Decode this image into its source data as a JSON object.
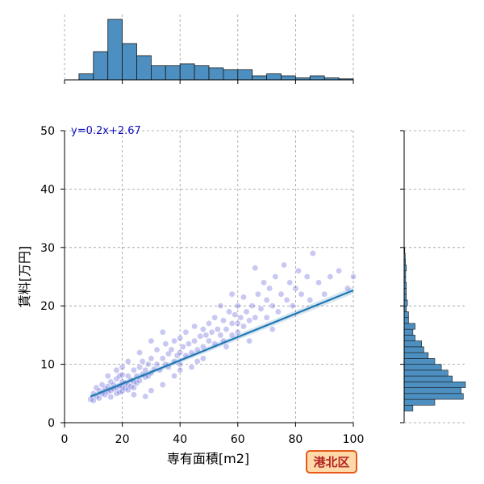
{
  "chart_data": {
    "type": "scatter",
    "xlabel": "専有面積[m2]",
    "ylabel": "賃料[万円]",
    "xlim": [
      0,
      100
    ],
    "ylim": [
      0,
      50
    ],
    "x_ticks": [
      "0",
      "20",
      "40",
      "60",
      "80",
      "100"
    ],
    "y_ticks": [
      "0",
      "10",
      "20",
      "30",
      "40",
      "50"
    ],
    "grid": true,
    "equation_label": "y=0.2x+2.67",
    "regression": {
      "slope": 0.2,
      "intercept": 2.67,
      "x_range": [
        9,
        100
      ]
    },
    "area_label": "港北区",
    "colors": {
      "points": "#3a3ad0",
      "regression_line": "#1f77b4",
      "histogram": "#4c8fc0",
      "badge_fill": "#ffd9a8",
      "badge_border": "#e55a1a",
      "equation": "#1010c0"
    },
    "x_histogram": {
      "bin_edges": [
        5,
        10,
        15,
        20,
        25,
        30,
        35,
        40,
        45,
        50,
        55,
        60,
        65,
        70,
        75,
        80,
        85,
        90,
        95,
        100
      ],
      "counts": [
        3,
        14,
        30,
        18,
        12,
        7,
        7,
        8,
        7,
        6,
        5,
        5,
        2,
        3,
        2,
        1,
        2,
        1,
        0.5,
        1
      ]
    },
    "y_histogram": {
      "bin_edges": [
        2,
        3,
        4,
        5,
        6,
        7,
        8,
        9,
        10,
        11,
        12,
        13,
        14,
        15,
        16,
        17,
        18,
        19,
        20,
        21,
        22,
        23,
        24,
        25,
        26,
        27,
        28,
        29,
        30
      ],
      "counts": [
        4,
        14,
        27,
        26,
        28,
        22,
        20,
        17,
        14,
        11,
        9,
        8,
        5,
        4,
        5,
        2,
        2,
        1,
        1.5,
        1,
        1,
        1,
        0.7,
        0.7,
        1,
        0.6,
        0.5,
        0.3
      ]
    },
    "points": [
      [
        9,
        4
      ],
      [
        10,
        5
      ],
      [
        10,
        3.8
      ],
      [
        11,
        6
      ],
      [
        11,
        4.5
      ],
      [
        12,
        5.5
      ],
      [
        12,
        4.2
      ],
      [
        13,
        6.5
      ],
      [
        13,
        5
      ],
      [
        14,
        5.8
      ],
      [
        14,
        4.8
      ],
      [
        15,
        6.2
      ],
      [
        15,
        5.3
      ],
      [
        16,
        7
      ],
      [
        16,
        5.5
      ],
      [
        16,
        4.4
      ],
      [
        17,
        6.5
      ],
      [
        17,
        5.8
      ],
      [
        18,
        7.5
      ],
      [
        18,
        6
      ],
      [
        18,
        5
      ],
      [
        19,
        8
      ],
      [
        19,
        6.3
      ],
      [
        19,
        5.2
      ],
      [
        20,
        7
      ],
      [
        20,
        6.1
      ],
      [
        20,
        5.4
      ],
      [
        20,
        9.5
      ],
      [
        20,
        8.2
      ],
      [
        21,
        6.8
      ],
      [
        21,
        5.9
      ],
      [
        22,
        8
      ],
      [
        22,
        6.5
      ],
      [
        22,
        5.6
      ],
      [
        23,
        7.3
      ],
      [
        23,
        6.2
      ],
      [
        24,
        9
      ],
      [
        24,
        7
      ],
      [
        24,
        6
      ],
      [
        25,
        8
      ],
      [
        25,
        6.8
      ],
      [
        26,
        9.5
      ],
      [
        26,
        7.2
      ],
      [
        27,
        8.3
      ],
      [
        27,
        10.5
      ],
      [
        28,
        7.8
      ],
      [
        28,
        9
      ],
      [
        29,
        10
      ],
      [
        29,
        8
      ],
      [
        30,
        8.5
      ],
      [
        30,
        11
      ],
      [
        31,
        9.2
      ],
      [
        32,
        10
      ],
      [
        32,
        12.5
      ],
      [
        33,
        9
      ],
      [
        34,
        11
      ],
      [
        35,
        10
      ],
      [
        35,
        13.5
      ],
      [
        36,
        9.5
      ],
      [
        36,
        11.8
      ],
      [
        37,
        12.5
      ],
      [
        38,
        10.5
      ],
      [
        38,
        14
      ],
      [
        39,
        11.5
      ],
      [
        40,
        12
      ],
      [
        40,
        10
      ],
      [
        40,
        14.5
      ],
      [
        41,
        13
      ],
      [
        42,
        11.5
      ],
      [
        42,
        15.5
      ],
      [
        43,
        13.5
      ],
      [
        44,
        12
      ],
      [
        45,
        14
      ],
      [
        45,
        16.5
      ],
      [
        46,
        12.5
      ],
      [
        47,
        14.8
      ],
      [
        48,
        13
      ],
      [
        48,
        16
      ],
      [
        49,
        15
      ],
      [
        50,
        14
      ],
      [
        50,
        17
      ],
      [
        51,
        15.5
      ],
      [
        52,
        13.5
      ],
      [
        52,
        18
      ],
      [
        53,
        16
      ],
      [
        54,
        15
      ],
      [
        55,
        17.5
      ],
      [
        55,
        14
      ],
      [
        56,
        16
      ],
      [
        57,
        19
      ],
      [
        58,
        17
      ],
      [
        58,
        15
      ],
      [
        59,
        18.5
      ],
      [
        60,
        17
      ],
      [
        60,
        20
      ],
      [
        60,
        15.5
      ],
      [
        61,
        18
      ],
      [
        62,
        21.5
      ],
      [
        62,
        16.5
      ],
      [
        63,
        19
      ],
      [
        64,
        17.5
      ],
      [
        65,
        20
      ],
      [
        66,
        26.5
      ],
      [
        66,
        18
      ],
      [
        67,
        22
      ],
      [
        68,
        19.5
      ],
      [
        69,
        24
      ],
      [
        70,
        21
      ],
      [
        70,
        18
      ],
      [
        71,
        23
      ],
      [
        72,
        20
      ],
      [
        73,
        25
      ],
      [
        74,
        19
      ],
      [
        75,
        22
      ],
      [
        76,
        27
      ],
      [
        77,
        21
      ],
      [
        78,
        24
      ],
      [
        79,
        20
      ],
      [
        80,
        23
      ],
      [
        81,
        26
      ],
      [
        82,
        22
      ],
      [
        84,
        25
      ],
      [
        85,
        21
      ],
      [
        86,
        29
      ],
      [
        88,
        24
      ],
      [
        90,
        22
      ],
      [
        92,
        25
      ],
      [
        95,
        26
      ],
      [
        98,
        23
      ],
      [
        100,
        25
      ],
      [
        15,
        8
      ],
      [
        18,
        9
      ],
      [
        22,
        10.5
      ],
      [
        26,
        12
      ],
      [
        30,
        14
      ],
      [
        34,
        15.5
      ],
      [
        38,
        8
      ],
      [
        44,
        9.5
      ],
      [
        48,
        11
      ],
      [
        56,
        13
      ],
      [
        64,
        14
      ],
      [
        72,
        16
      ],
      [
        54,
        20
      ],
      [
        58,
        22
      ],
      [
        34,
        6.5
      ],
      [
        30,
        5.5
      ],
      [
        28,
        4.5
      ],
      [
        24,
        4.8
      ],
      [
        40,
        9
      ],
      [
        46,
        10.5
      ]
    ]
  }
}
